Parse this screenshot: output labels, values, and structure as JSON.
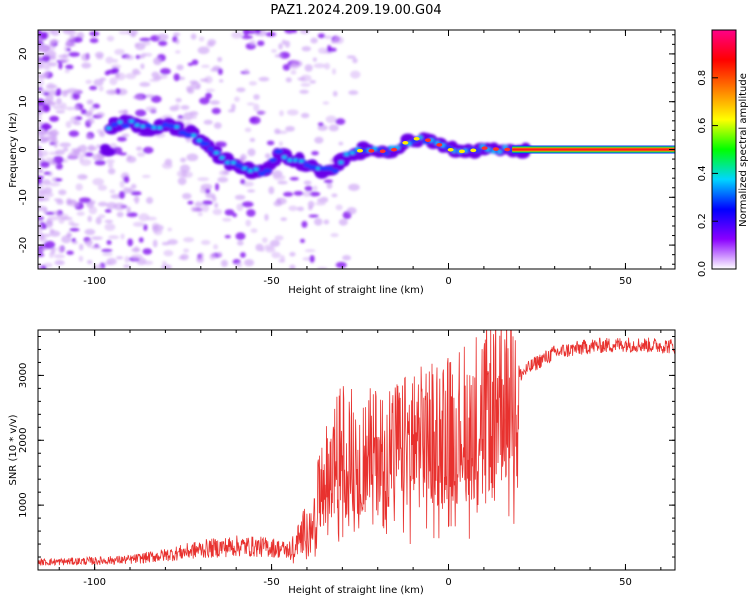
{
  "figure_title": "PAZ1.2024.209.19.00.G04",
  "chart_data": [
    {
      "type": "heatmap",
      "xlabel": "Height of straight line (km)",
      "ylabel": "Frequency (Hz)",
      "xlim": [
        -116,
        64
      ],
      "ylim": [
        -25,
        25
      ],
      "x_ticks": [
        "-100",
        "-50",
        "0",
        "50"
      ],
      "y_ticks": [
        "20",
        "10",
        "0",
        "-10",
        "-20"
      ],
      "colorbar": {
        "label": "Normalized spectral amplitude",
        "range": [
          0,
          1
        ],
        "ticks": [
          "0.0",
          "0.2",
          "0.4",
          "0.6",
          "0.8"
        ],
        "colormap": [
          "#ffffff",
          "#8a00ff",
          "#0000ff",
          "#00d6ff",
          "#00ff00",
          "#ffff00",
          "#ff7f00",
          "#ff0000",
          "#ff0088"
        ]
      },
      "ridge": [
        {
          "x": -96,
          "y": 5
        },
        {
          "x": -90,
          "y": 5.5
        },
        {
          "x": -85,
          "y": 4.5
        },
        {
          "x": -80,
          "y": 5
        },
        {
          "x": -75,
          "y": 4
        },
        {
          "x": -72,
          "y": 3
        },
        {
          "x": -68,
          "y": 1
        },
        {
          "x": -64,
          "y": -2
        },
        {
          "x": -60,
          "y": -3.5
        },
        {
          "x": -56,
          "y": -4.5
        },
        {
          "x": -52,
          "y": -5
        },
        {
          "x": -48,
          "y": -1
        },
        {
          "x": -44,
          "y": -2
        },
        {
          "x": -40,
          "y": -3
        },
        {
          "x": -36,
          "y": -4.5
        },
        {
          "x": -32,
          "y": -4
        },
        {
          "x": -28,
          "y": -1
        },
        {
          "x": -24,
          "y": 0
        },
        {
          "x": -20,
          "y": -0.5
        },
        {
          "x": -15,
          "y": 0
        },
        {
          "x": -12,
          "y": 1.5
        },
        {
          "x": -8,
          "y": 2.5
        },
        {
          "x": -4,
          "y": 1.5
        },
        {
          "x": 0,
          "y": 0
        },
        {
          "x": 5,
          "y": -0.5
        },
        {
          "x": 10,
          "y": 0.3
        },
        {
          "x": 15,
          "y": 0
        },
        {
          "x": 20,
          "y": 0
        },
        {
          "x": 64,
          "y": 0
        }
      ]
    },
    {
      "type": "line",
      "xlabel": "Height of straight line (km)",
      "ylabel": "SNR (10 * v/v)",
      "xlim": [
        -116,
        64
      ],
      "ylim": [
        0,
        3700
      ],
      "x_ticks": [
        "-100",
        "-50",
        "0",
        "50"
      ],
      "y_ticks": [
        "1000",
        "2000",
        "3000"
      ],
      "color": "#e8312e",
      "envelope": [
        {
          "x": -116,
          "y": 120
        },
        {
          "x": -100,
          "y": 140
        },
        {
          "x": -90,
          "y": 160
        },
        {
          "x": -80,
          "y": 230
        },
        {
          "x": -70,
          "y": 320
        },
        {
          "x": -60,
          "y": 370
        },
        {
          "x": -50,
          "y": 350
        },
        {
          "x": -45,
          "y": 300
        },
        {
          "x": -42,
          "y": 500
        },
        {
          "x": -38,
          "y": 900
        },
        {
          "x": -35,
          "y": 1400
        },
        {
          "x": -30,
          "y": 1900
        },
        {
          "x": -25,
          "y": 1800
        },
        {
          "x": -20,
          "y": 1850
        },
        {
          "x": -15,
          "y": 1900
        },
        {
          "x": -10,
          "y": 2000
        },
        {
          "x": -5,
          "y": 2100
        },
        {
          "x": 0,
          "y": 2150
        },
        {
          "x": 5,
          "y": 2300
        },
        {
          "x": 10,
          "y": 2500
        },
        {
          "x": 15,
          "y": 2750
        },
        {
          "x": 20,
          "y": 3000
        },
        {
          "x": 25,
          "y": 3200
        },
        {
          "x": 30,
          "y": 3350
        },
        {
          "x": 40,
          "y": 3450
        },
        {
          "x": 50,
          "y": 3480
        },
        {
          "x": 64,
          "y": 3450
        }
      ]
    }
  ]
}
